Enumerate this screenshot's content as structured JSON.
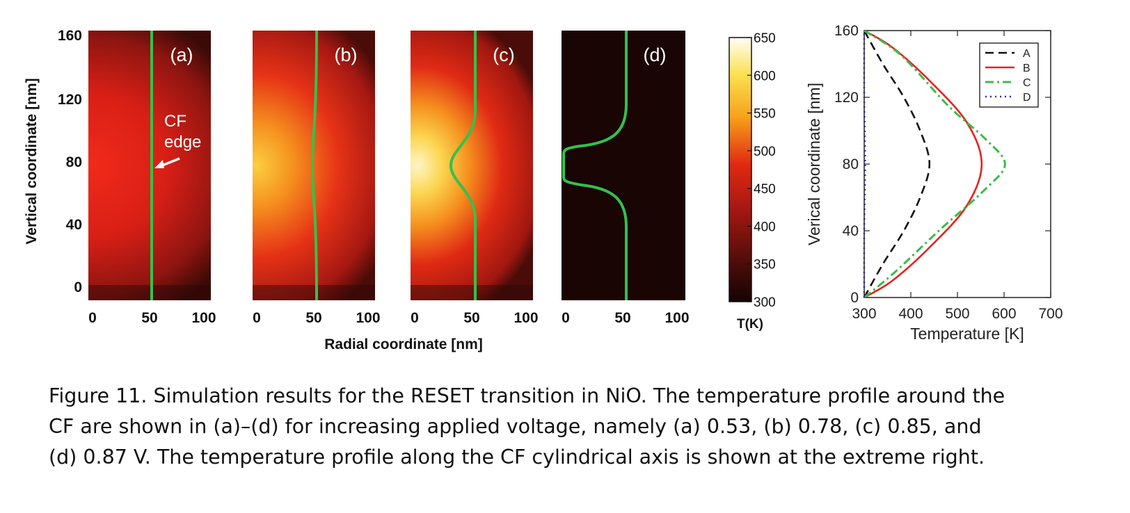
{
  "heatmap_panels": {
    "y_axis_label": "Vertical coordinate [nm]",
    "x_axis_label": "Radial coordinate [nm]",
    "y_ticks": [
      "160",
      "120",
      "80",
      "40",
      "0"
    ],
    "x_ticks": [
      "0",
      "50",
      "100"
    ],
    "annotation_line1": "CF",
    "annotation_line2": "edge",
    "panel_labels": [
      "(a)",
      "(b)",
      "(c)",
      "(d)"
    ]
  },
  "colorbar": {
    "unit_label": "T(K)",
    "ticks": [
      "650",
      "600",
      "550",
      "500",
      "450",
      "400",
      "350",
      "300"
    ],
    "range": [
      300,
      650
    ]
  },
  "colors": {
    "cf_edge": "#33c24a",
    "series_A": "#111111",
    "series_B": "#e8201e",
    "series_C": "#38bc4a",
    "series_D": "#2a2aa0"
  },
  "chart_data": {
    "type": "line",
    "xlabel": "Temperature [K]",
    "ylabel": "Verical coordinate [nm]",
    "xlim": [
      300,
      700
    ],
    "ylim": [
      0,
      160
    ],
    "x_ticks": [
      "300",
      "400",
      "500",
      "600",
      "700"
    ],
    "y_ticks": [
      "0",
      "40",
      "80",
      "120",
      "160"
    ],
    "legend_position": "top-right",
    "series": [
      {
        "name": "A",
        "style": "dashed",
        "points": [
          [
            300,
            0
          ],
          [
            340,
            20
          ],
          [
            385,
            40
          ],
          [
            420,
            60
          ],
          [
            440,
            80
          ],
          [
            420,
            100
          ],
          [
            385,
            120
          ],
          [
            340,
            140
          ],
          [
            300,
            160
          ]
        ]
      },
      {
        "name": "B",
        "style": "solid",
        "points": [
          [
            300,
            0
          ],
          [
            360,
            10
          ],
          [
            440,
            30
          ],
          [
            520,
            55
          ],
          [
            552,
            80
          ],
          [
            520,
            105
          ],
          [
            440,
            130
          ],
          [
            360,
            150
          ],
          [
            300,
            160
          ]
        ]
      },
      {
        "name": "C",
        "style": "dash-dot",
        "points": [
          [
            300,
            0
          ],
          [
            365,
            15
          ],
          [
            460,
            40
          ],
          [
            560,
            65
          ],
          [
            602,
            80
          ],
          [
            560,
            95
          ],
          [
            480,
            115
          ],
          [
            380,
            145
          ],
          [
            300,
            160
          ]
        ]
      },
      {
        "name": "D",
        "style": "dotted",
        "points": [
          [
            300,
            0
          ],
          [
            300,
            40
          ],
          [
            302,
            80
          ],
          [
            300,
            120
          ],
          [
            300,
            160
          ]
        ]
      }
    ]
  },
  "caption": {
    "line1": "Figure 11. Simulation results for the RESET transition in NiO. The temperature profile around the",
    "line2": "CF are shown in (a)–(d) for increasing applied voltage, namely (a) 0.53, (b) 0.78, (c) 0.85, and",
    "line3": "(d) 0.87 V. The temperature profile along the CF cylindrical axis is shown at the extreme right."
  }
}
